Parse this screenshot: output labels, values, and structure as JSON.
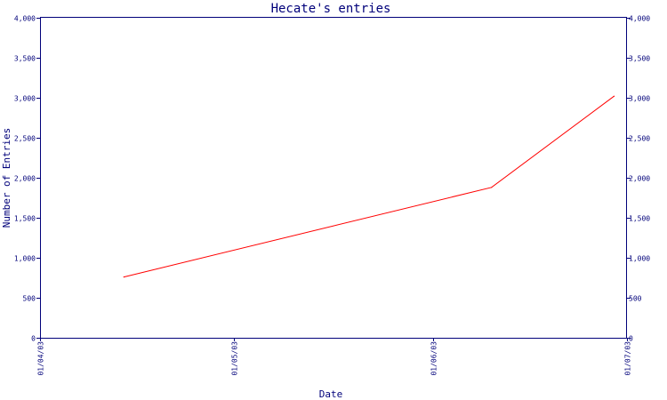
{
  "chart_data": {
    "type": "line",
    "title": "Hecate's entries",
    "xlabel": "Date",
    "ylabel": "Number of Entries",
    "x_ticks": [
      "01/04/03",
      "01/05/03",
      "01/06/03",
      "01/07/03"
    ],
    "xlim": [
      "01/04/03",
      "01/07/03"
    ],
    "ylim": [
      0,
      4000
    ],
    "y_ticks": [
      0,
      500,
      1000,
      1500,
      2000,
      2500,
      3000,
      3500,
      4000
    ],
    "y_tick_labels": [
      "0",
      "500",
      "1,000",
      "1,500",
      "2,000",
      "2,500",
      "3,000",
      "3,500",
      "4,000"
    ],
    "series": [
      {
        "color": "#ff0000",
        "points": [
          {
            "x": "2003-04-14",
            "y": 760
          },
          {
            "x": "2003-06-10",
            "y": 1880
          },
          {
            "x": "2003-06-29",
            "y": 3020
          }
        ]
      }
    ],
    "grid": false,
    "legend": "none",
    "secondary_y_axis_mirrored": true
  }
}
